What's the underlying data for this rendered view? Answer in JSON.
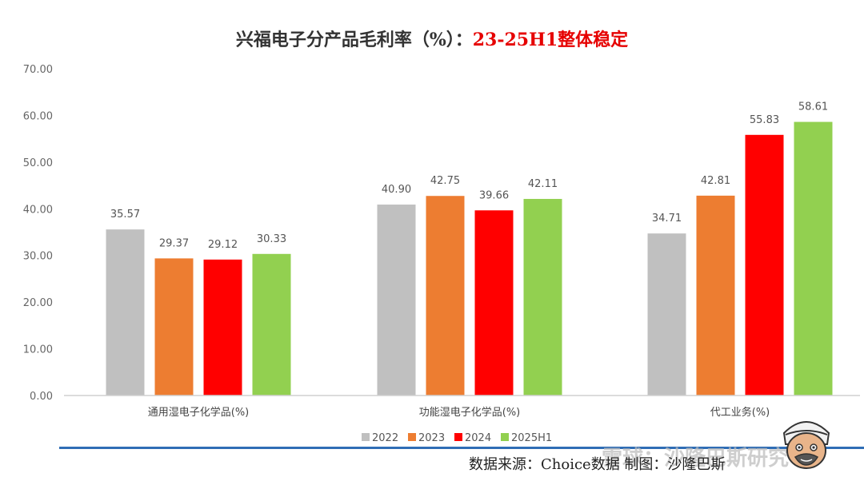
{
  "title": {
    "main": "兴福电子分产品毛利率（%）：",
    "accent": "23-25H1整体稳定"
  },
  "source": "数据来源：Choice数据 制图：沙隆巴斯",
  "watermark": "雪球：沙隆巴斯研究",
  "colors": {
    "2022": "#c0c0c0",
    "2023": "#ed7d31",
    "2024": "#ff0000",
    "2025H1": "#92d050"
  },
  "chart_data": {
    "type": "bar",
    "categories": [
      "通用湿电子化学品(%)",
      "功能湿电子化学品(%)",
      "代工业务(%)"
    ],
    "series": [
      {
        "name": "2022",
        "values": [
          35.57,
          40.9,
          34.71
        ],
        "labels": [
          "35.57",
          "40.90",
          "34.71"
        ]
      },
      {
        "name": "2023",
        "values": [
          29.37,
          42.75,
          42.81
        ],
        "labels": [
          "29.37",
          "42.75",
          "42.81"
        ]
      },
      {
        "name": "2024",
        "values": [
          29.12,
          39.66,
          55.83
        ],
        "labels": [
          "29.12",
          "39.66",
          "55.83"
        ]
      },
      {
        "name": "2025H1",
        "values": [
          30.33,
          42.11,
          58.61
        ],
        "labels": [
          "30.33",
          "42.11",
          "58.61"
        ]
      }
    ],
    "ylim": [
      0,
      70
    ],
    "yticks": [
      "0.00",
      "10.00",
      "20.00",
      "30.00",
      "40.00",
      "50.00",
      "60.00",
      "70.00"
    ],
    "grid": false,
    "legend": "bottom"
  }
}
